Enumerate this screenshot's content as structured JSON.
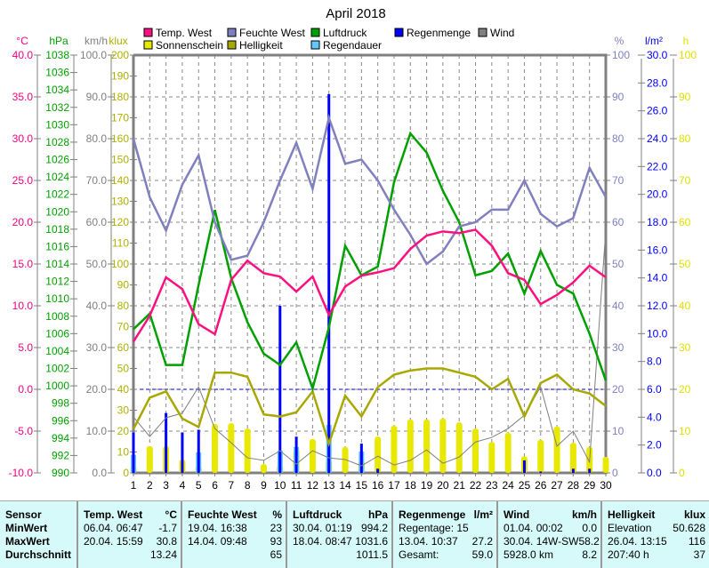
{
  "chart_data": {
    "type": "line",
    "title": "April 2018",
    "x": [
      1,
      2,
      3,
      4,
      5,
      6,
      7,
      8,
      9,
      10,
      11,
      12,
      13,
      14,
      15,
      16,
      17,
      18,
      19,
      20,
      21,
      22,
      23,
      24,
      25,
      26,
      27,
      28,
      29,
      30
    ],
    "axes": {
      "celsius": {
        "unit": "°C",
        "range": [
          -10,
          40
        ],
        "step": 5,
        "color": "#ff0080"
      },
      "hpa": {
        "unit": "hPa",
        "range": [
          990,
          1038
        ],
        "step": 2,
        "color": "#00a000"
      },
      "kmh": {
        "unit": "km/h",
        "range": [
          0,
          100
        ],
        "step": 10,
        "color": "#808080"
      },
      "klux": {
        "unit": "klux",
        "range": [
          0,
          200
        ],
        "step": 10,
        "color": "#b0b000"
      },
      "percent": {
        "unit": "%",
        "range": [
          0,
          100
        ],
        "step": 10,
        "color": "#8080c0"
      },
      "rain": {
        "unit": "l/m²",
        "range": [
          0,
          30
        ],
        "step": 2,
        "color": "#0000ff"
      },
      "hours": {
        "unit": "h",
        "range": [
          0,
          100
        ],
        "step": 10,
        "color": "#e0e000"
      }
    },
    "series": [
      {
        "name": "Temp. West",
        "axis": "celsius",
        "kind": "line",
        "color": "#ff1080",
        "values": [
          5.7,
          8.8,
          13.4,
          12.0,
          7.8,
          6.6,
          13.1,
          15.4,
          13.9,
          13.5,
          11.7,
          13.5,
          8.9,
          12.3,
          13.6,
          14.0,
          14.5,
          16.8,
          18.4,
          18.9,
          18.7,
          19.1,
          17.2,
          13.9,
          13.1,
          10.2,
          11.3,
          12.8,
          14.8,
          13.4
        ]
      },
      {
        "name": "Feuchte West",
        "axis": "percent",
        "kind": "line",
        "color": "#8080c0",
        "values": [
          80,
          66,
          58,
          69,
          76,
          60,
          51,
          52,
          60,
          70,
          79,
          68,
          85,
          74,
          75,
          70,
          63,
          57,
          50,
          53,
          59,
          60,
          63,
          63,
          70,
          62,
          59,
          61,
          73,
          66
        ]
      },
      {
        "name": "Luftdruck",
        "axis": "hpa",
        "kind": "line",
        "color": "#00a000",
        "values": [
          1006.5,
          1008.3,
          1002.4,
          1002.4,
          1011.6,
          1020.2,
          1012.4,
          1007.3,
          1003.7,
          1002.4,
          1005.0,
          999.7,
          1006.7,
          1016.1,
          1012.7,
          1013.7,
          1023.4,
          1029.0,
          1026.8,
          1022.4,
          1018.8,
          1012.7,
          1013.2,
          1015.2,
          1010.6,
          1015.5,
          1011.6,
          1010.6,
          1006.0,
          1000.6
        ]
      },
      {
        "name": "Sonnenschein",
        "axis": "hours",
        "kind": "bar",
        "color": "#e8e800",
        "values": [
          1.7,
          6.4,
          6.4,
          3.2,
          1.7,
          11.7,
          11.9,
          10.6,
          2.1,
          1.9,
          5.7,
          8.1,
          3.2,
          6.2,
          3.0,
          8.7,
          11.3,
          12.8,
          12.8,
          13.0,
          12.1,
          10.6,
          7.4,
          9.6,
          4.0,
          7.9,
          11.1,
          7.2,
          6.2,
          3.8
        ]
      },
      {
        "name": "Helligkeit",
        "axis": "klux",
        "kind": "line",
        "color": "#a8a800",
        "values": [
          21,
          36,
          39,
          26,
          22,
          48,
          48,
          46,
          28,
          27,
          29,
          39,
          14,
          37,
          27,
          41,
          47,
          49,
          50,
          50,
          48,
          46,
          40,
          45,
          27,
          43,
          47,
          40,
          38,
          32
        ]
      },
      {
        "name": "Regendauer",
        "axis": "hours",
        "kind": "bar",
        "color": "#60c8ff",
        "values": [
          4.3,
          0,
          0,
          0,
          4.9,
          0,
          0,
          0,
          0,
          5.3,
          6.2,
          0,
          11.5,
          0,
          5.1,
          0,
          0,
          0,
          0,
          0,
          0,
          0,
          0,
          0,
          0,
          0,
          0,
          0,
          0,
          0
        ]
      },
      {
        "name": "Regenmenge",
        "axis": "rain",
        "kind": "bar",
        "color": "#0000ff",
        "values": [
          2.9,
          0,
          4.3,
          2.9,
          3.1,
          0,
          0,
          0,
          0,
          12.0,
          2.6,
          0,
          27.2,
          0,
          2.1,
          0.3,
          0,
          0,
          0,
          0,
          0,
          0,
          0,
          0,
          0.9,
          0.1,
          0,
          0.3,
          0.3,
          0
        ]
      },
      {
        "name": "Wind",
        "axis": "kmh",
        "kind": "line",
        "color": "#808080",
        "values": [
          13.4,
          8.7,
          13.2,
          14.3,
          20.6,
          10.6,
          7.2,
          3.6,
          3.0,
          5.3,
          2.1,
          5.3,
          3.6,
          3.2,
          1.7,
          4.0,
          1.9,
          3.0,
          5.5,
          2.3,
          3.8,
          7.4,
          8.5,
          10.6,
          13.8,
          20.6,
          6.4,
          10.0,
          2.6,
          58.2
        ]
      }
    ],
    "reference_line": {
      "axis": "percent",
      "value": 20,
      "color": "#0000ff"
    },
    "legend_placement": "top",
    "grid": true
  },
  "table": {
    "sensor": {
      "header": "Sensor",
      "rows": [
        "MinWert",
        "MaxWert",
        "Durchschnitt"
      ]
    },
    "temp": {
      "header": "Temp. West",
      "unit": "°C",
      "rows": [
        [
          "06.04.  06:47",
          "-1.7"
        ],
        [
          "20.04.  15:59",
          "30.8"
        ],
        [
          "",
          "13.24"
        ]
      ]
    },
    "hum": {
      "header": "Feuchte West",
      "unit": "%",
      "rows": [
        [
          "19.04.  16:38",
          "23"
        ],
        [
          "14.04.  09:48",
          "93"
        ],
        [
          "",
          "65"
        ]
      ]
    },
    "press": {
      "header": "Luftdruck",
      "unit": "hPa",
      "rows": [
        [
          "30.04.  01:19",
          "994.2"
        ],
        [
          "18.04.  08:47",
          "1031.6"
        ],
        [
          "",
          "1011.5"
        ]
      ]
    },
    "rain": {
      "header": "Regenmenge",
      "unit": "l/m²",
      "rows": [
        [
          "Regentage: 15",
          ""
        ],
        [
          "13.04.  10:37",
          "27.2"
        ],
        [
          "Gesamt:",
          "59.0"
        ]
      ]
    },
    "wind": {
      "header": "Wind",
      "unit": "km/h",
      "rows": [
        [
          "01.04.  00:02",
          "0.0"
        ],
        [
          "30.04.  14W-SW",
          "58.2"
        ],
        [
          "5928.0 km",
          "8.2"
        ]
      ]
    },
    "light": {
      "header": "Helligkeit",
      "unit": "klux",
      "rows": [
        [
          "Elevation",
          "50.628"
        ],
        [
          "26.04.  13:15",
          "116"
        ],
        [
          "207:40 h",
          "37"
        ]
      ]
    }
  }
}
